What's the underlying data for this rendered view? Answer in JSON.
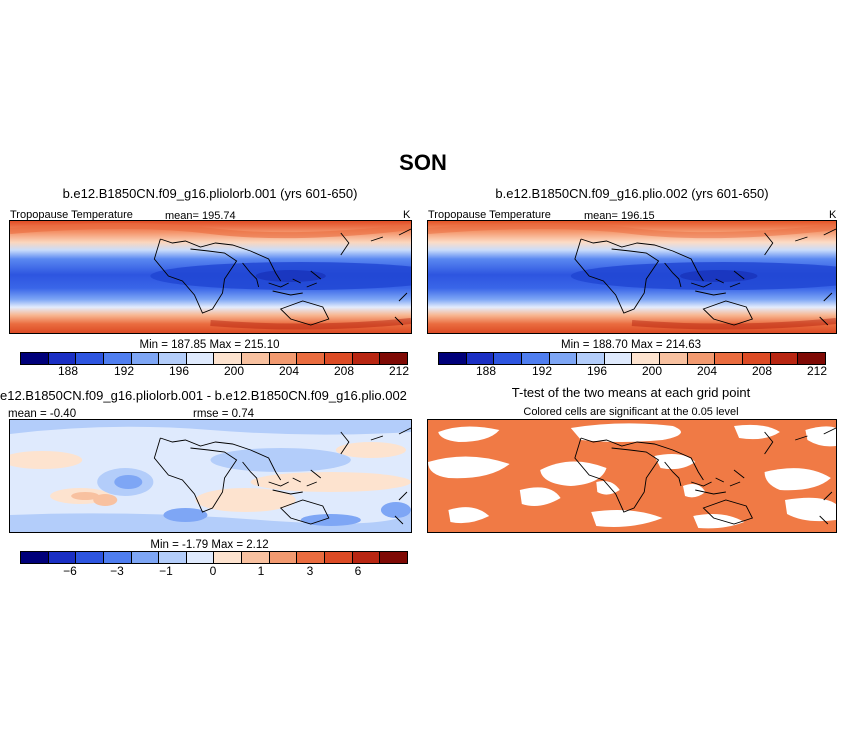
{
  "title": "SON",
  "colors": {
    "scale": [
      "#00007a",
      "#1a2fc4",
      "#2d55e0",
      "#4f7ef0",
      "#7ea6f5",
      "#b3cdfa",
      "#dfeafd",
      "#fde3cf",
      "#f8c1a0",
      "#f29a70",
      "#ea6c3f",
      "#dc4b25",
      "#b82612",
      "#7f0a05"
    ]
  },
  "panels": {
    "p1": {
      "title": "b.e12.B1850CN.f09_g16.pliolorb.001 (yrs 601-650)",
      "label_left": "Tropopause Temperature",
      "mean": "mean= 195.74",
      "unit": "K",
      "minmax": "Min = 187.85 Max = 215.10",
      "ticks": [
        "188",
        "192",
        "196",
        "200",
        "204",
        "208",
        "212"
      ]
    },
    "p2": {
      "title": "b.e12.B1850CN.f09_g16.plio.002 (yrs 601-650)",
      "label_left": "Tropopause Temperature",
      "mean": "mean= 196.15",
      "unit": "K",
      "minmax": "Min = 188.70 Max = 214.63",
      "ticks": [
        "188",
        "192",
        "196",
        "200",
        "204",
        "208",
        "212"
      ]
    },
    "p3": {
      "title": "e12.B1850CN.f09_g16.pliolorb.001 - b.e12.B1850CN.f09_g16.plio.002",
      "mean": "mean =  -0.40",
      "rmse": "rmse =   0.74",
      "minmax": "Min =  -1.79 Max =   2.12",
      "ticks": [
        "−6",
        "−3",
        "−1",
        "0",
        "1",
        "3",
        "6"
      ]
    },
    "p4": {
      "title": "T-test of the two means at each grid point",
      "subtitle": "Colored cells are significant at the 0.05 level"
    }
  }
}
